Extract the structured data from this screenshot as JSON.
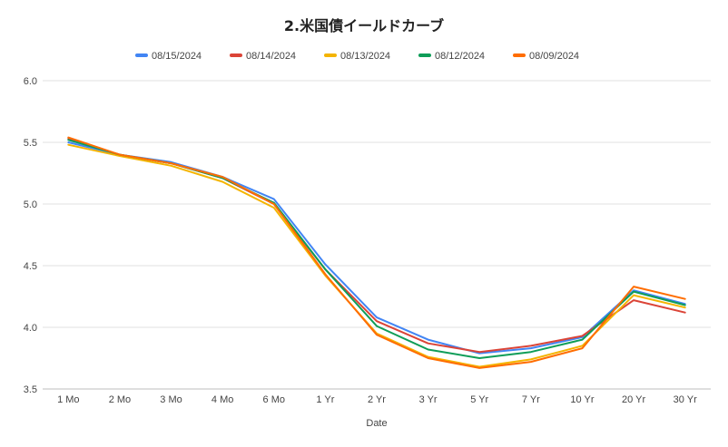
{
  "chart_data": {
    "type": "line",
    "title": "2.米国債イールドカーブ",
    "xlabel": "Date",
    "ylabel": "",
    "ylim": [
      3.5,
      6.0
    ],
    "yticks": [
      "6.0",
      "5.5",
      "5.0",
      "4.5",
      "4.0",
      "3.5"
    ],
    "ytick_values": [
      6.0,
      5.5,
      5.0,
      4.5,
      4.0,
      3.5
    ],
    "grid": true,
    "legend_position": "top",
    "categories": [
      "1 Mo",
      "2 Mo",
      "3 Mo",
      "4 Mo",
      "6 Mo",
      "1 Yr",
      "2 Yr",
      "3 Yr",
      "5 Yr",
      "7 Yr",
      "10 Yr",
      "20 Yr",
      "30 Yr"
    ],
    "series": [
      {
        "name": "08/15/2024",
        "color": "#4285f4",
        "values": [
          5.5,
          5.4,
          5.34,
          5.22,
          5.04,
          4.51,
          4.08,
          3.9,
          3.79,
          3.83,
          3.92,
          4.3,
          4.19
        ]
      },
      {
        "name": "08/14/2024",
        "color": "#db4437",
        "values": [
          5.53,
          5.4,
          5.33,
          5.21,
          5.0,
          4.47,
          4.05,
          3.87,
          3.8,
          3.85,
          3.93,
          4.22,
          4.12
        ]
      },
      {
        "name": "08/13/2024",
        "color": "#f4b400",
        "values": [
          5.48,
          5.39,
          5.31,
          5.18,
          4.97,
          4.42,
          3.95,
          3.76,
          3.68,
          3.74,
          3.85,
          4.26,
          4.16
        ]
      },
      {
        "name": "08/12/2024",
        "color": "#0f9d58",
        "values": [
          5.52,
          5.4,
          5.33,
          5.21,
          5.01,
          4.47,
          4.01,
          3.82,
          3.75,
          3.8,
          3.9,
          4.29,
          4.18
        ]
      },
      {
        "name": "08/09/2024",
        "color": "#ff6d01",
        "values": [
          5.54,
          5.4,
          5.33,
          5.22,
          5.0,
          4.43,
          3.94,
          3.75,
          3.67,
          3.72,
          3.83,
          4.33,
          4.23
        ]
      }
    ]
  }
}
